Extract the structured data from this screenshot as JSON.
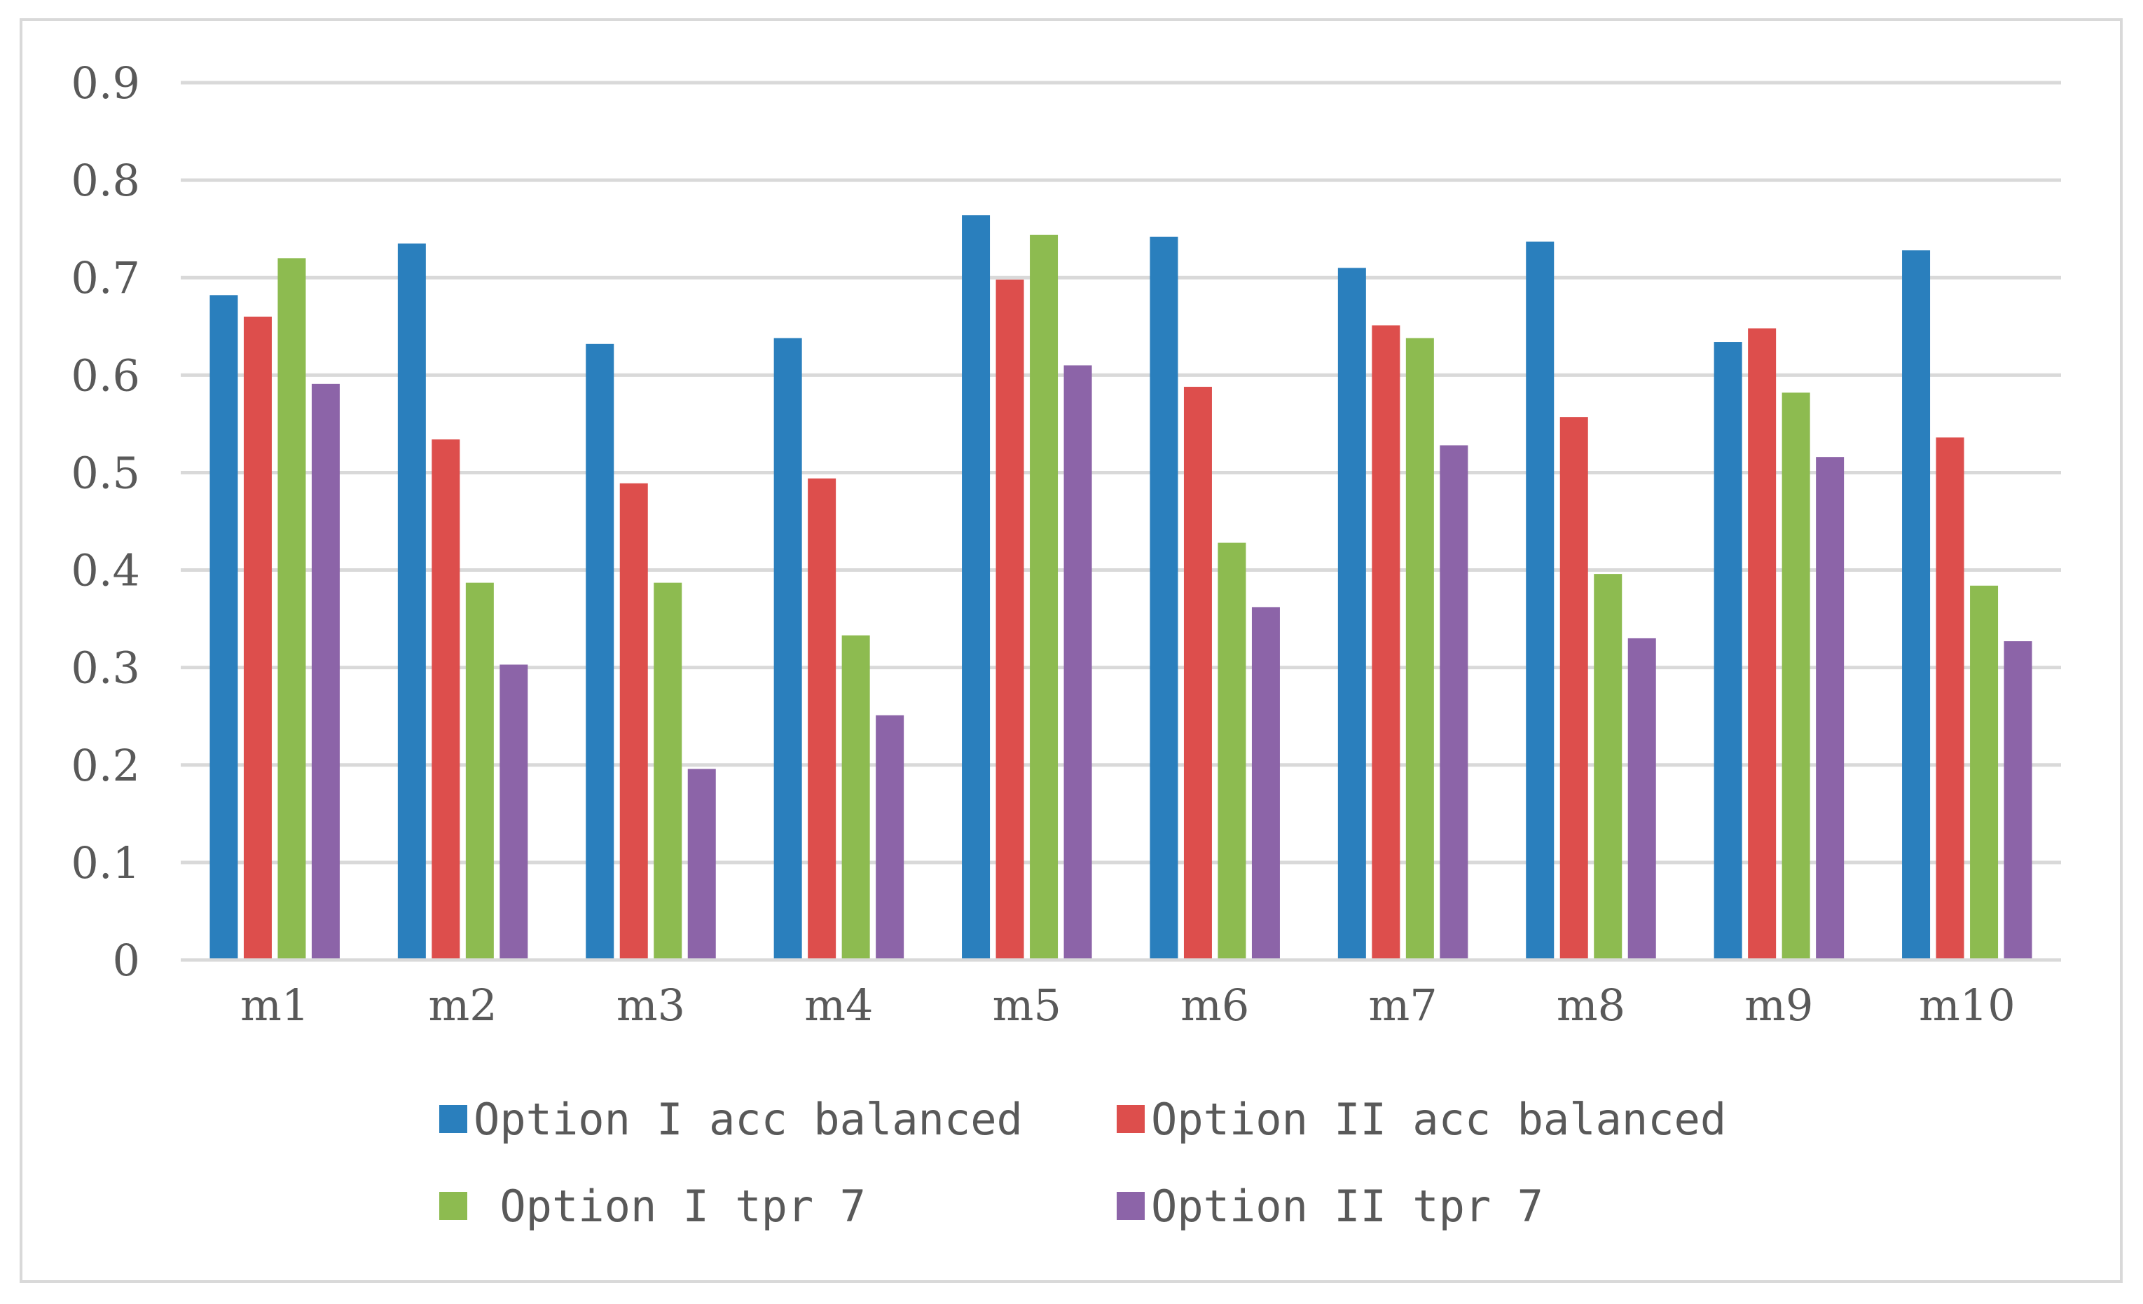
{
  "chart_data": {
    "type": "bar",
    "title": "",
    "xlabel": "",
    "ylabel": "",
    "categories": [
      "m1",
      "m2",
      "m3",
      "m4",
      "m5",
      "m6",
      "m7",
      "m8",
      "m9",
      "m10"
    ],
    "ylim": [
      0,
      0.9
    ],
    "yticks": [
      "0",
      "0.1",
      "0.2",
      "0.3",
      "0.4",
      "0.5",
      "0.6",
      "0.7",
      "0.8",
      "0.9"
    ],
    "grid": true,
    "legend_position": "bottom",
    "series": [
      {
        "name": "Option I acc balanced",
        "color": "#2a7fbd",
        "values": [
          0.682,
          0.735,
          0.632,
          0.638,
          0.764,
          0.742,
          0.71,
          0.737,
          0.634,
          0.728
        ]
      },
      {
        "name": "Option II acc balanced",
        "color": "#dd4e4c",
        "values": [
          0.66,
          0.534,
          0.489,
          0.494,
          0.698,
          0.588,
          0.651,
          0.557,
          0.648,
          0.536
        ]
      },
      {
        "name": "Option I tpr 7",
        "color": "#8dbb50",
        "values": [
          0.72,
          0.387,
          0.387,
          0.333,
          0.744,
          0.428,
          0.638,
          0.396,
          0.582,
          0.384
        ]
      },
      {
        "name": "Option II tpr 7",
        "color": "#8c64a8",
        "values": [
          0.591,
          0.303,
          0.196,
          0.251,
          0.61,
          0.362,
          0.528,
          0.33,
          0.516,
          0.327
        ]
      }
    ]
  },
  "legend": {
    "items": [
      {
        "label": "Option I acc balanced"
      },
      {
        "label": "Option II acc balanced"
      },
      {
        "label": " Option I tpr 7"
      },
      {
        "label": "Option II tpr 7"
      }
    ]
  }
}
